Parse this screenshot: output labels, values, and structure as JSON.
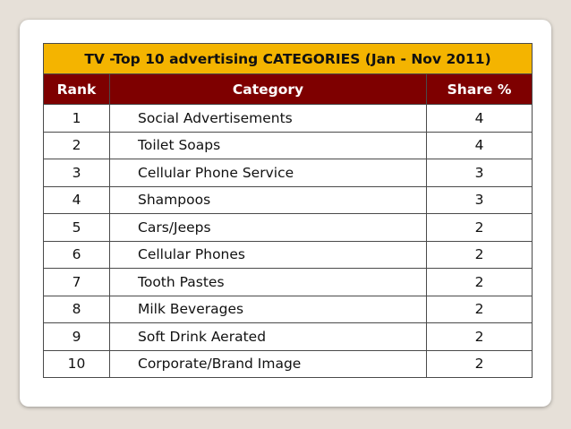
{
  "table": {
    "title": "TV -Top 10 advertising CATEGORIES (Jan - Nov 2011)",
    "columns": [
      "Rank",
      "Category",
      "Share %"
    ],
    "rows": [
      {
        "rank": "1",
        "category": "Social Advertisements",
        "share": "4"
      },
      {
        "rank": "2",
        "category": "Toilet Soaps",
        "share": "4"
      },
      {
        "rank": "3",
        "category": "Cellular Phone Service",
        "share": "3"
      },
      {
        "rank": "4",
        "category": "Shampoos",
        "share": "3"
      },
      {
        "rank": "5",
        "category": "Cars/Jeeps",
        "share": "2"
      },
      {
        "rank": "6",
        "category": "Cellular Phones",
        "share": "2"
      },
      {
        "rank": "7",
        "category": "Tooth Pastes",
        "share": "2"
      },
      {
        "rank": "8",
        "category": "Milk Beverages",
        "share": "2"
      },
      {
        "rank": "9",
        "category": "Soft Drink Aerated",
        "share": "2"
      },
      {
        "rank": "10",
        "category": "Corporate/Brand Image",
        "share": "2"
      }
    ]
  },
  "colors": {
    "background": "#e6e0d8",
    "title_fill": "#f4b400",
    "header_fill": "#7e0000",
    "header_text": "#ffffff"
  }
}
